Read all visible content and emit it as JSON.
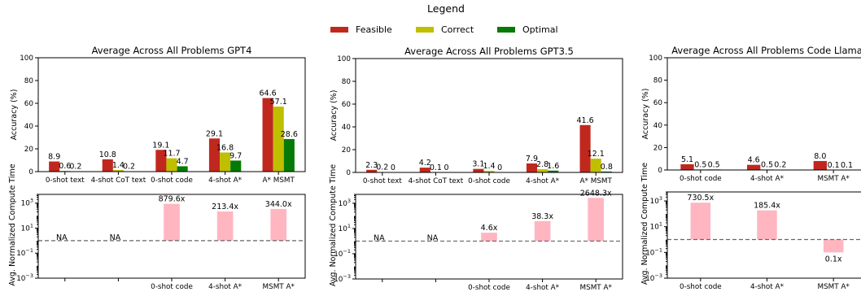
{
  "legend": {
    "title": "Legend",
    "items": [
      {
        "label": "Feasible",
        "color": "#c0281e"
      },
      {
        "label": "Correct",
        "color": "#bfbf00"
      },
      {
        "label": "Optimal",
        "color": "#067a06"
      }
    ]
  },
  "colors": {
    "compute_bar": "#ffb6c1",
    "reference_line": "#666666"
  },
  "chart_data": [
    {
      "type": "bar",
      "title": "Average Across All Problems GPT4",
      "accuracy": {
        "ylabel": "Accuracy (%)",
        "ylim": [
          0,
          100
        ],
        "yticks": [
          0,
          20,
          40,
          60,
          80,
          100
        ],
        "categories": [
          "0-shot text",
          "4-shot CoT text",
          "0-shot code",
          "4-shot A*",
          "A* MSMT"
        ],
        "series": [
          {
            "name": "Feasible",
            "values": [
              8.9,
              10.8,
              19.1,
              29.1,
              64.6
            ],
            "labels": [
              "8.9",
              "10.8",
              "19.1",
              "29.1",
              "64.6"
            ]
          },
          {
            "name": "Correct",
            "values": [
              0.6,
              1.4,
              11.7,
              16.8,
              57.1
            ],
            "labels": [
              "0.6",
              "1.4",
              "11.7",
              "16.8",
              "57.1"
            ]
          },
          {
            "name": "Optimal",
            "values": [
              0.2,
              0.2,
              4.7,
              9.7,
              28.6
            ],
            "labels": [
              "0.2",
              "0.2",
              "4.7",
              "9.7",
              "28.6"
            ]
          }
        ]
      },
      "compute": {
        "ylabel": "Avg. Normalized Compute Time",
        "scale": "log",
        "ylim": [
          0.001,
          5000
        ],
        "yticks": [
          {
            "value": 0.001,
            "base": "10",
            "exp": "−3"
          },
          {
            "value": 0.1,
            "base": "10",
            "exp": "−1"
          },
          {
            "value": 10,
            "base": "10",
            "exp": "1"
          },
          {
            "value": 1000,
            "base": "10",
            "exp": "3"
          }
        ],
        "reference": 1,
        "categories": [
          "",
          "",
          "0-shot code",
          "4-shot A*",
          "MSMT A*"
        ],
        "values": [
          null,
          null,
          879.6,
          213.4,
          344.0
        ],
        "labels": [
          "NA",
          "NA",
          "879.6x",
          "213.4x",
          "344.0x"
        ]
      }
    },
    {
      "type": "bar",
      "title": "Average Across All Problems GPT3.5",
      "accuracy": {
        "ylabel": "Accuracy (%)",
        "ylim": [
          0,
          100
        ],
        "yticks": [
          0,
          20,
          40,
          60,
          80,
          100
        ],
        "categories": [
          "0-shot text",
          "4-shot CoT text",
          "0-shot code",
          "4-shot A*",
          "A* MSMT"
        ],
        "series": [
          {
            "name": "Feasible",
            "values": [
              2.3,
              4.2,
              3.1,
              7.9,
              41.6
            ],
            "labels": [
              "2.3",
              "4.2",
              "3.1",
              "7.9",
              "41.6"
            ]
          },
          {
            "name": "Correct",
            "values": [
              0.2,
              0.1,
              1.4,
              2.8,
              12.1
            ],
            "labels": [
              "0.2",
              "0.1",
              "1.4",
              "2.8",
              "12.1"
            ]
          },
          {
            "name": "Optimal",
            "values": [
              0,
              0,
              0,
              1.6,
              0.8
            ],
            "labels": [
              "0",
              "0",
              "0",
              "1.6",
              "0.8"
            ]
          }
        ]
      },
      "compute": {
        "ylabel": "Avg. Normalized Compute Time",
        "scale": "log",
        "ylim": [
          0.001,
          5000
        ],
        "yticks": [
          {
            "value": 0.001,
            "base": "10",
            "exp": "−3"
          },
          {
            "value": 0.1,
            "base": "10",
            "exp": "−1"
          },
          {
            "value": 10,
            "base": "10",
            "exp": "1"
          },
          {
            "value": 1000,
            "base": "10",
            "exp": "3"
          }
        ],
        "reference": 1,
        "categories": [
          "",
          "",
          "0-shot code",
          "4-shot A*",
          "MSMT A*"
        ],
        "values": [
          null,
          null,
          4.6,
          38.3,
          2648.3
        ],
        "labels": [
          "NA",
          "NA",
          "4.6x",
          "38.3x",
          "2648.3x"
        ]
      }
    },
    {
      "type": "bar",
      "title": "Average Across All Problems Code Llama",
      "accuracy": {
        "ylabel": "Accuracy (%)",
        "ylim": [
          0,
          100
        ],
        "yticks": [
          0,
          20,
          40,
          60,
          80,
          100
        ],
        "categories": [
          "0-shot code",
          "4-shot A*",
          "MSMT A*"
        ],
        "series": [
          {
            "name": "Feasible",
            "values": [
              5.1,
              4.6,
              8.0
            ],
            "labels": [
              "5.1",
              "4.6",
              "8.0"
            ]
          },
          {
            "name": "Correct",
            "values": [
              0.5,
              0.5,
              0.1
            ],
            "labels": [
              "0.5",
              "0.5",
              "0.1"
            ]
          },
          {
            "name": "Optimal",
            "values": [
              0.5,
              0.2,
              0.1
            ],
            "labels": [
              "0.5",
              "0.2",
              "0.1"
            ]
          }
        ]
      },
      "compute": {
        "ylabel": "Avg. Normalized Compute Time",
        "scale": "log",
        "ylim": [
          0.001,
          5000
        ],
        "yticks": [
          {
            "value": 0.001,
            "base": "10",
            "exp": "−3"
          },
          {
            "value": 0.1,
            "base": "10",
            "exp": "−1"
          },
          {
            "value": 10,
            "base": "10",
            "exp": "1"
          },
          {
            "value": 1000,
            "base": "10",
            "exp": "3"
          }
        ],
        "reference": 1,
        "categories": [
          "0-shot code",
          "4-shot A*",
          "MSMT A*"
        ],
        "values": [
          730.5,
          185.4,
          0.1
        ],
        "labels": [
          "730.5x",
          "185.4x",
          "0.1x"
        ]
      }
    }
  ]
}
